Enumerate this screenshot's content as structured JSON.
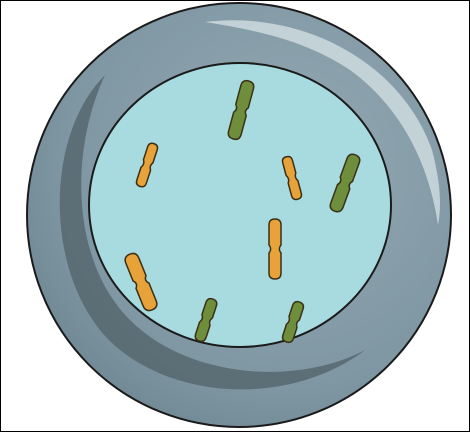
{
  "diagram": {
    "colors": {
      "background": "#ffffff",
      "dish_rim": "#7f97a3",
      "dish_rim_shadow": "#56676f",
      "dish_highlight": "#c9d7dc",
      "dish_interior": "#a7dbe0",
      "outline": "#1b1b1b",
      "chromosome_orange": "#e8a23a",
      "chromosome_green": "#6f8e3c",
      "chromosome_outline": "#3b3016"
    },
    "chromosomes": [
      {
        "color": "green"
      },
      {
        "color": "orange"
      },
      {
        "color": "orange"
      },
      {
        "color": "green"
      },
      {
        "color": "orange"
      },
      {
        "color": "orange"
      },
      {
        "color": "green"
      },
      {
        "color": "green"
      }
    ]
  }
}
